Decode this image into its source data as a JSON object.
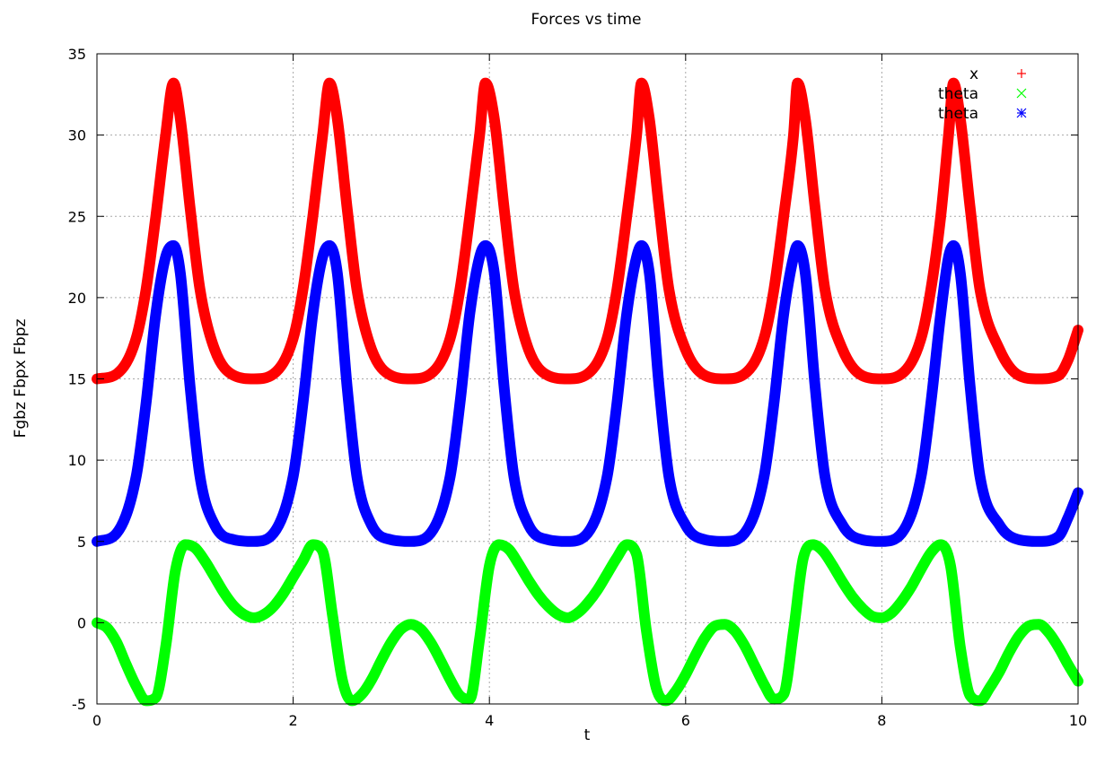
{
  "chart_data": {
    "type": "line",
    "title": "Forces vs time",
    "xlabel": "t",
    "ylabel": "Fgbz Fbpx Fbpz",
    "xlim": [
      0,
      10
    ],
    "ylim": [
      -5,
      35
    ],
    "xticks": [
      0,
      2,
      4,
      6,
      8,
      10
    ],
    "yticks": [
      -5,
      0,
      5,
      10,
      15,
      20,
      25,
      30,
      35
    ],
    "grid": true,
    "legend_position": "top-right",
    "series": [
      {
        "name": "x",
        "color": "#ff0000",
        "marker": "+",
        "x": [
          0,
          0.2,
          0.4,
          0.5,
          0.6,
          0.7,
          0.78,
          0.85,
          0.95,
          1.05,
          1.2,
          1.4,
          1.6,
          1.8,
          2.0,
          2.1,
          2.2,
          2.3,
          2.37,
          2.45,
          2.55,
          2.65,
          2.8,
          3.0,
          3.2,
          3.4,
          3.6,
          3.7,
          3.8,
          3.9,
          3.96,
          4.05,
          4.15,
          4.25,
          4.4,
          4.6,
          4.8,
          5.0,
          5.2,
          5.3,
          5.4,
          5.5,
          5.55,
          5.63,
          5.73,
          5.83,
          6.0,
          6.2,
          6.4,
          6.6,
          6.8,
          6.9,
          7.0,
          7.1,
          7.14,
          7.22,
          7.32,
          7.42,
          7.6,
          7.8,
          8.0,
          8.2,
          8.4,
          8.5,
          8.6,
          8.68,
          8.73,
          8.8,
          8.9,
          9.0,
          9.2,
          9.4,
          9.6,
          9.8,
          9.9,
          10.0
        ],
        "y": [
          15,
          15.3,
          17.5,
          20.5,
          25,
          30,
          33.2,
          31,
          25.5,
          20.5,
          16.8,
          15.2,
          15,
          15.3,
          17.5,
          20.5,
          25,
          30,
          33.2,
          31,
          25.5,
          20.5,
          16.8,
          15.2,
          15,
          15.3,
          17.5,
          20.5,
          25,
          30,
          33.2,
          31,
          25.5,
          20.5,
          16.8,
          15.2,
          15,
          15.3,
          17.5,
          20.5,
          25,
          30,
          33.2,
          31,
          25.5,
          20.5,
          16.8,
          15.2,
          15,
          15.3,
          17.5,
          20.5,
          25,
          30,
          33.2,
          31,
          25.5,
          20.5,
          16.8,
          15.2,
          15,
          15.3,
          17.5,
          20.5,
          25,
          30,
          33.2,
          31,
          25.5,
          20.5,
          16.8,
          15.2,
          15,
          15.2,
          16.2,
          18
        ]
      },
      {
        "name": "theta",
        "color": "#00ff00",
        "marker": "x",
        "x": [
          0,
          0.1,
          0.2,
          0.3,
          0.4,
          0.5,
          0.6,
          0.7,
          0.8,
          0.9,
          1.0,
          1.1,
          1.2,
          1.3,
          1.4,
          1.5,
          1.6,
          1.7,
          1.8,
          1.9,
          2.0,
          2.1,
          2.2,
          2.3,
          2.4,
          2.5,
          2.6,
          2.7,
          2.8,
          2.9,
          3.0,
          3.1,
          3.2,
          3.3,
          3.4,
          3.5,
          3.6,
          3.7,
          3.8,
          3.9,
          4.0,
          4.1,
          4.2,
          4.3,
          4.4,
          4.5,
          4.6,
          4.7,
          4.8,
          4.9,
          5.0,
          5.1,
          5.2,
          5.3,
          5.4,
          5.5,
          5.6,
          5.7,
          5.8,
          5.9,
          6.0,
          6.1,
          6.2,
          6.3,
          6.4,
          6.5,
          6.6,
          6.7,
          6.8,
          6.9,
          7.0,
          7.1,
          7.2,
          7.3,
          7.4,
          7.5,
          7.6,
          7.7,
          7.8,
          7.9,
          8.0,
          8.1,
          8.2,
          8.3,
          8.4,
          8.5,
          8.6,
          8.7,
          8.8,
          8.9,
          9.0,
          9.1,
          9.2,
          9.3,
          9.4,
          9.5,
          9.6,
          9.7,
          9.8,
          9.9,
          10.0
        ],
        "y": [
          0,
          -0.3,
          -1.2,
          -2.6,
          -3.9,
          -4.8,
          -4.6,
          -1.5,
          3.2,
          4.8,
          4.6,
          3.8,
          2.8,
          1.8,
          1.0,
          0.5,
          0.3,
          0.5,
          1.0,
          1.8,
          2.8,
          3.8,
          4.8,
          4.4,
          0.5,
          -3.5,
          -4.8,
          -4.4,
          -3.5,
          -2.3,
          -1.2,
          -0.4,
          -0.1,
          -0.4,
          -1.2,
          -2.3,
          -3.5,
          -4.5,
          -4.7,
          -1.0,
          3.5,
          4.8,
          4.5,
          3.6,
          2.6,
          1.7,
          1.0,
          0.5,
          0.3,
          0.6,
          1.2,
          2.0,
          3.0,
          4.0,
          4.8,
          4.2,
          -0.5,
          -4.0,
          -4.8,
          -4.2,
          -3.2,
          -2.0,
          -0.9,
          -0.2,
          -0.1,
          -0.5,
          -1.4,
          -2.6,
          -3.8,
          -4.7,
          -4.4,
          -0.5,
          4.0,
          4.8,
          4.4,
          3.5,
          2.5,
          1.6,
          0.9,
          0.4,
          0.3,
          0.6,
          1.3,
          2.2,
          3.3,
          4.3,
          4.8,
          3.5,
          -1.5,
          -4.5,
          -4.8,
          -4.0,
          -3.0,
          -1.8,
          -0.8,
          -0.2,
          -0.1,
          -0.6,
          -1.5,
          -2.6,
          -3.6
        ]
      },
      {
        "name": "theta",
        "color": "#0000ff",
        "marker": "*",
        "x": [
          0,
          0.2,
          0.4,
          0.5,
          0.6,
          0.7,
          0.78,
          0.85,
          0.95,
          1.05,
          1.2,
          1.4,
          1.6,
          1.8,
          2.0,
          2.1,
          2.2,
          2.3,
          2.37,
          2.45,
          2.55,
          2.65,
          2.8,
          3.0,
          3.2,
          3.4,
          3.6,
          3.7,
          3.8,
          3.9,
          3.96,
          4.05,
          4.15,
          4.25,
          4.4,
          4.6,
          4.8,
          5.0,
          5.2,
          5.3,
          5.4,
          5.5,
          5.55,
          5.63,
          5.73,
          5.83,
          6.0,
          6.2,
          6.4,
          6.6,
          6.8,
          6.9,
          7.0,
          7.1,
          7.14,
          7.22,
          7.32,
          7.42,
          7.6,
          7.8,
          8.0,
          8.2,
          8.4,
          8.5,
          8.6,
          8.68,
          8.73,
          8.8,
          8.9,
          9.0,
          9.2,
          9.4,
          9.6,
          9.8,
          9.9,
          10.0
        ],
        "y": [
          5,
          5.5,
          9,
          13.5,
          19,
          22.5,
          23.2,
          21.5,
          14.5,
          9,
          6,
          5.1,
          5,
          5.5,
          9,
          13.5,
          19,
          22.5,
          23.2,
          21.5,
          14.5,
          9,
          6,
          5.1,
          5,
          5.5,
          9,
          13.5,
          19,
          22.5,
          23.2,
          21.5,
          14.5,
          9,
          6,
          5.1,
          5,
          5.5,
          9,
          13.5,
          19,
          22.5,
          23.2,
          21.5,
          14.5,
          9,
          6,
          5.1,
          5,
          5.5,
          9,
          13.5,
          19,
          22.5,
          23.2,
          21.5,
          14.5,
          9,
          6,
          5.1,
          5,
          5.5,
          9,
          13.5,
          19,
          22.5,
          23.2,
          21.5,
          14.5,
          9,
          6,
          5.1,
          5,
          5.3,
          6.5,
          8
        ]
      }
    ]
  }
}
